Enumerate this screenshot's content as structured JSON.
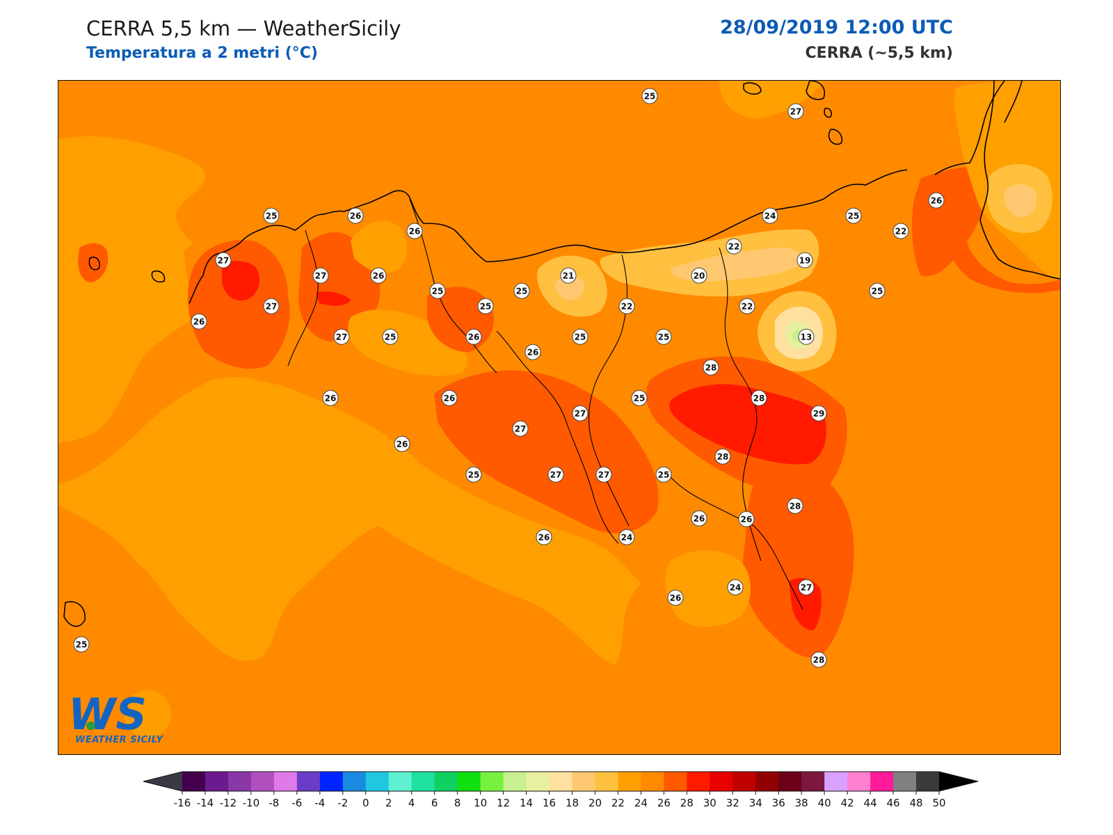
{
  "header": {
    "title": "CERRA 5,5 km — WeatherSicily",
    "subtitle": "Temperatura a 2 metri (°C)",
    "datetime": "28/09/2019 12:00 UTC",
    "model": "CERRA (~5,5 km)"
  },
  "logo": {
    "text": "WEATHER SICILY",
    "mark": "WS"
  },
  "colors": {
    "accent_blue": "#0b5cb5",
    "sea": "#ff8a00",
    "coast": "#000000"
  },
  "colorbar": {
    "ticks": [
      "-16",
      "-14",
      "-12",
      "-10",
      "-8",
      "-6",
      "-4",
      "-2",
      "0",
      "2",
      "4",
      "6",
      "8",
      "10",
      "12",
      "14",
      "16",
      "18",
      "20",
      "22",
      "24",
      "26",
      "28",
      "30",
      "32",
      "34",
      "36",
      "38",
      "40",
      "42",
      "44",
      "46",
      "48",
      "50"
    ],
    "colors": [
      "#44004d",
      "#6b1a8f",
      "#8a38a8",
      "#b04fbd",
      "#e07ae8",
      "#6a3cc7",
      "#0024ff",
      "#1a8ae0",
      "#1fc8e0",
      "#5ef0d0",
      "#1ee0a0",
      "#10d060",
      "#10e010",
      "#78f040",
      "#c8f090",
      "#e8f0a0",
      "#ffe0a0",
      "#ffc870",
      "#ffc040",
      "#ffa000",
      "#ff8a00",
      "#ff5a00",
      "#ff1a00",
      "#e60000",
      "#c00000",
      "#900000",
      "#6b0018",
      "#7a1840",
      "#d8a0ff",
      "#ff80d0",
      "#ff1a9a",
      "#808080",
      "#3a3a3a"
    ],
    "under_color": "#3a3a45",
    "over_color": "#000000"
  },
  "stations": [
    {
      "v": "25"
    },
    {
      "v": "27"
    },
    {
      "v": "25"
    },
    {
      "v": "26"
    },
    {
      "v": "26"
    },
    {
      "v": "27"
    },
    {
      "v": "27"
    },
    {
      "v": "26"
    },
    {
      "v": "27"
    },
    {
      "v": "26"
    },
    {
      "v": "25"
    },
    {
      "v": "25"
    },
    {
      "v": "25"
    },
    {
      "v": "27"
    },
    {
      "v": "25"
    },
    {
      "v": "26"
    },
    {
      "v": "21"
    },
    {
      "v": "26"
    },
    {
      "v": "25"
    },
    {
      "v": "22"
    },
    {
      "v": "20"
    },
    {
      "v": "22"
    },
    {
      "v": "24"
    },
    {
      "v": "19"
    },
    {
      "v": "25"
    },
    {
      "v": "22"
    },
    {
      "v": "26"
    },
    {
      "v": "25"
    },
    {
      "v": "22"
    },
    {
      "v": "13"
    },
    {
      "v": "25"
    },
    {
      "v": "28"
    },
    {
      "v": "26"
    },
    {
      "v": "26"
    },
    {
      "v": "27"
    },
    {
      "v": "25"
    },
    {
      "v": "28"
    },
    {
      "v": "29"
    },
    {
      "v": "27"
    },
    {
      "v": "26"
    },
    {
      "v": "28"
    },
    {
      "v": "25"
    },
    {
      "v": "27"
    },
    {
      "v": "27"
    },
    {
      "v": "25"
    },
    {
      "v": "26"
    },
    {
      "v": "24"
    },
    {
      "v": "26"
    },
    {
      "v": "28"
    },
    {
      "v": "26"
    },
    {
      "v": "24"
    },
    {
      "v": "27"
    },
    {
      "v": "26"
    },
    {
      "v": "28"
    },
    {
      "v": "25"
    }
  ]
}
